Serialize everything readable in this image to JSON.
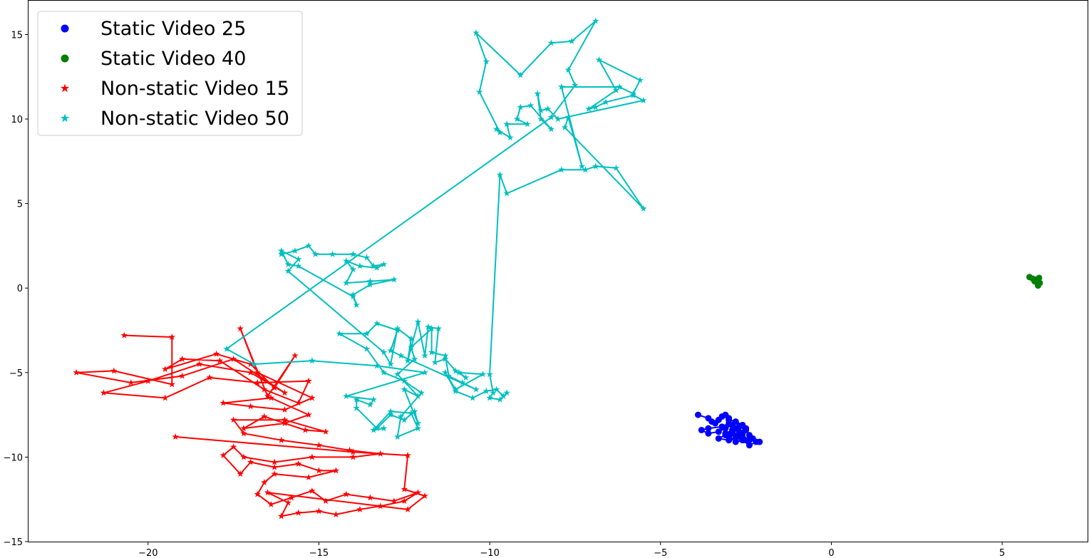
{
  "chart_data": {
    "type": "scatter",
    "title": "",
    "xlabel": "",
    "ylabel": "",
    "xlim": [
      -23.5,
      7.5
    ],
    "ylim": [
      -15,
      17
    ],
    "xticks": [
      -20,
      -15,
      -10,
      -5,
      0,
      5
    ],
    "yticks": [
      -15,
      -10,
      -5,
      0,
      5,
      10,
      15
    ],
    "xtick_labels": [
      "−20",
      "−15",
      "−10",
      "−5",
      "0",
      "5"
    ],
    "ytick_labels": [
      "−15",
      "−10",
      "−5",
      "0",
      "5",
      "10",
      "15"
    ],
    "grid": false,
    "legend_position": "top-left",
    "series": [
      {
        "name": "Static Video 25",
        "color": "#0000ff",
        "marker": "circle",
        "points": [
          [
            -3.9,
            -7.5
          ],
          [
            -3.6,
            -7.7
          ],
          [
            -3.5,
            -7.9
          ],
          [
            -3.4,
            -8.0
          ],
          [
            -3.3,
            -7.8
          ],
          [
            -3.2,
            -7.6
          ],
          [
            -3.1,
            -7.5
          ],
          [
            -3.0,
            -7.7
          ],
          [
            -3.0,
            -8.0
          ],
          [
            -3.2,
            -8.2
          ],
          [
            -3.6,
            -8.3
          ],
          [
            -3.8,
            -8.4
          ],
          [
            -3.6,
            -8.6
          ],
          [
            -3.3,
            -8.5
          ],
          [
            -3.1,
            -8.3
          ],
          [
            -2.9,
            -8.1
          ],
          [
            -2.8,
            -8.3
          ],
          [
            -2.9,
            -8.5
          ],
          [
            -3.1,
            -8.7
          ],
          [
            -3.3,
            -8.9
          ],
          [
            -3.0,
            -9.0
          ],
          [
            -2.8,
            -8.8
          ],
          [
            -2.6,
            -8.6
          ],
          [
            -2.5,
            -8.4
          ],
          [
            -2.7,
            -8.2
          ],
          [
            -2.9,
            -8.4
          ],
          [
            -3.1,
            -8.6
          ],
          [
            -2.7,
            -8.8
          ],
          [
            -2.5,
            -9.0
          ],
          [
            -2.4,
            -8.7
          ],
          [
            -2.3,
            -8.9
          ],
          [
            -2.2,
            -9.1
          ],
          [
            -2.4,
            -9.3
          ],
          [
            -2.6,
            -9.0
          ],
          [
            -2.8,
            -9.1
          ],
          [
            -3.0,
            -8.8
          ],
          [
            -2.7,
            -8.5
          ],
          [
            -2.5,
            -8.3
          ],
          [
            -2.6,
            -8.1
          ],
          [
            -2.8,
            -7.9
          ],
          [
            -3.0,
            -7.8
          ],
          [
            -2.9,
            -8.6
          ],
          [
            -2.6,
            -8.8
          ],
          [
            -2.4,
            -9.0
          ],
          [
            -2.1,
            -9.1
          ]
        ]
      },
      {
        "name": "Static Video 40",
        "color": "#008000",
        "marker": "circle",
        "points": [
          [
            5.8,
            0.65
          ],
          [
            5.9,
            0.55
          ],
          [
            6.0,
            0.45
          ],
          [
            6.05,
            0.2
          ],
          [
            6.1,
            0.3
          ],
          [
            6.08,
            0.6
          ],
          [
            6.0,
            0.5
          ],
          [
            5.95,
            0.4
          ],
          [
            6.05,
            0.15
          ]
        ]
      },
      {
        "name": "Non-static Video 15",
        "color": "#ff0000",
        "marker": "star",
        "points": [
          [
            -20.7,
            -2.8
          ],
          [
            -19.3,
            -2.9
          ],
          [
            -19.3,
            -5.7
          ],
          [
            -21.0,
            -4.9
          ],
          [
            -22.1,
            -5.0
          ],
          [
            -20.5,
            -5.6
          ],
          [
            -19.0,
            -5.2
          ],
          [
            -17.5,
            -4.2
          ],
          [
            -16.0,
            -6.2
          ],
          [
            -17.0,
            -5.0
          ],
          [
            -18.5,
            -4.5
          ],
          [
            -20.0,
            -5.5
          ],
          [
            -21.3,
            -6.2
          ],
          [
            -19.5,
            -6.5
          ],
          [
            -18.2,
            -5.3
          ],
          [
            -16.8,
            -5.6
          ],
          [
            -15.3,
            -5.5
          ],
          [
            -15.6,
            -6.8
          ],
          [
            -16.6,
            -6.0
          ],
          [
            -17.9,
            -4.3
          ],
          [
            -19.0,
            -4.2
          ],
          [
            -19.5,
            -4.8
          ],
          [
            -18.0,
            -3.9
          ],
          [
            -17.0,
            -4.5
          ],
          [
            -16.3,
            -5.9
          ],
          [
            -15.7,
            -4.0
          ],
          [
            -16.5,
            -6.4
          ],
          [
            -17.3,
            -2.4
          ],
          [
            -16.8,
            -5.0
          ],
          [
            -15.2,
            -6.5
          ],
          [
            -16.0,
            -7.2
          ],
          [
            -17.0,
            -7.0
          ],
          [
            -17.8,
            -6.8
          ],
          [
            -16.4,
            -6.5
          ],
          [
            -15.3,
            -7.5
          ],
          [
            -16.0,
            -8.0
          ],
          [
            -17.2,
            -8.3
          ],
          [
            -16.6,
            -7.6
          ],
          [
            -15.4,
            -8.4
          ],
          [
            -14.8,
            -8.5
          ],
          [
            -16.0,
            -7.8
          ],
          [
            -17.5,
            -7.8
          ],
          [
            -17.2,
            -8.6
          ],
          [
            -16.1,
            -9.0
          ],
          [
            -15.0,
            -9.3
          ],
          [
            -14.1,
            -9.6
          ],
          [
            -13.2,
            -9.8
          ],
          [
            -14.0,
            -10.0
          ],
          [
            -15.2,
            -10.0
          ],
          [
            -16.3,
            -10.3
          ],
          [
            -17.2,
            -10.0
          ],
          [
            -17.5,
            -9.4
          ],
          [
            -17.8,
            -9.9
          ],
          [
            -17.3,
            -11.0
          ],
          [
            -17.0,
            -10.3
          ],
          [
            -16.3,
            -10.6
          ],
          [
            -15.6,
            -10.4
          ],
          [
            -15.0,
            -10.8
          ],
          [
            -14.5,
            -10.8
          ],
          [
            -15.3,
            -11.2
          ],
          [
            -16.3,
            -11.0
          ],
          [
            -16.6,
            -11.5
          ],
          [
            -16.8,
            -12.2
          ],
          [
            -16.4,
            -12.8
          ],
          [
            -15.8,
            -12.4
          ],
          [
            -15.2,
            -12.0
          ],
          [
            -14.8,
            -12.6
          ],
          [
            -14.2,
            -12.2
          ],
          [
            -13.5,
            -12.4
          ],
          [
            -12.8,
            -12.6
          ],
          [
            -12.1,
            -12.1
          ],
          [
            -12.5,
            -12.6
          ],
          [
            -13.2,
            -12.9
          ],
          [
            -13.8,
            -13.1
          ],
          [
            -14.5,
            -13.4
          ],
          [
            -15.0,
            -13.2
          ],
          [
            -15.6,
            -13.3
          ],
          [
            -16.1,
            -13.5
          ],
          [
            -15.9,
            -12.7
          ],
          [
            -16.5,
            -12.1
          ],
          [
            -12.4,
            -13.1
          ],
          [
            -11.9,
            -12.3
          ],
          [
            -12.5,
            -11.9
          ],
          [
            -12.4,
            -9.9
          ],
          [
            -14.0,
            -9.7
          ],
          [
            -19.2,
            -8.8
          ]
        ]
      },
      {
        "name": "Non-static Video 50",
        "color": "#00bfbf",
        "marker": "star",
        "points": [
          [
            -16.1,
            2.0
          ],
          [
            -15.7,
            2.2
          ],
          [
            -15.3,
            2.5
          ],
          [
            -15.1,
            2.0
          ],
          [
            -14.6,
            2.0
          ],
          [
            -14.0,
            2.0
          ],
          [
            -13.6,
            1.8
          ],
          [
            -13.4,
            1.3
          ],
          [
            -13.1,
            1.4
          ],
          [
            -13.3,
            1.2
          ],
          [
            -13.8,
            1.3
          ],
          [
            -14.2,
            1.6
          ],
          [
            -14.0,
            1.1
          ],
          [
            -14.2,
            0.3
          ],
          [
            -13.5,
            0.4
          ],
          [
            -12.8,
            0.5
          ],
          [
            -13.5,
            0.2
          ],
          [
            -14.0,
            -0.4
          ],
          [
            -13.9,
            -1.0
          ],
          [
            -14.0,
            -0.5
          ],
          [
            -15.6,
            1.3
          ],
          [
            -15.9,
            1.4
          ],
          [
            -16.1,
            2.2
          ],
          [
            -15.6,
            1.7
          ],
          [
            -15.9,
            1.0
          ],
          [
            -13.1,
            -3.8
          ],
          [
            -12.9,
            -4.5
          ],
          [
            -12.7,
            -2.4
          ],
          [
            -12.3,
            -3.0
          ],
          [
            -12.4,
            -4.3
          ],
          [
            -12.1,
            -2.0
          ],
          [
            -11.9,
            -4.0
          ],
          [
            -11.8,
            -2.3
          ],
          [
            -11.5,
            -2.4
          ],
          [
            -11.6,
            -4.4
          ],
          [
            -11.3,
            -4.2
          ],
          [
            -11.0,
            -4.9
          ],
          [
            -10.7,
            -5.3
          ],
          [
            -10.9,
            -5.0
          ],
          [
            -10.2,
            -5.1
          ],
          [
            -11.0,
            -6.0
          ],
          [
            -11.3,
            -5.0
          ],
          [
            -11.0,
            -6.1
          ],
          [
            -10.5,
            -6.5
          ],
          [
            -10.1,
            -6.1
          ],
          [
            -9.8,
            -6.0
          ],
          [
            -9.6,
            -6.4
          ],
          [
            -9.5,
            -6.2
          ],
          [
            -9.7,
            -6.6
          ],
          [
            -10.0,
            -6.5
          ],
          [
            -9.9,
            -6.2
          ],
          [
            -10.0,
            -5.1
          ],
          [
            -9.7,
            6.7
          ],
          [
            -9.5,
            5.6
          ],
          [
            -7.9,
            7.0
          ],
          [
            -7.2,
            7.0
          ],
          [
            -6.9,
            7.2
          ],
          [
            -6.3,
            7.1
          ],
          [
            -5.5,
            4.7
          ],
          [
            -7.8,
            9.5
          ],
          [
            -7.7,
            10.1
          ],
          [
            -7.3,
            7.2
          ],
          [
            -7.9,
            11.9
          ],
          [
            -6.2,
            11.9
          ],
          [
            -5.8,
            11.5
          ],
          [
            -5.6,
            12.3
          ],
          [
            -6.8,
            13.5
          ],
          [
            -6.3,
            11.7
          ],
          [
            -7.1,
            10.6
          ],
          [
            -6.9,
            10.7
          ],
          [
            -6.6,
            11.0
          ],
          [
            -5.8,
            11.4
          ],
          [
            -5.5,
            11.1
          ],
          [
            -8.0,
            10.0
          ],
          [
            -8.3,
            10.6
          ],
          [
            -8.5,
            10.5
          ],
          [
            -8.6,
            11.5
          ],
          [
            -8.5,
            10.0
          ],
          [
            -8.2,
            9.4
          ],
          [
            -8.8,
            10.8
          ],
          [
            -9.1,
            10.7
          ],
          [
            -9.2,
            10.0
          ],
          [
            -8.9,
            9.7
          ],
          [
            -9.5,
            9.7
          ],
          [
            -9.4,
            8.9
          ],
          [
            -9.8,
            9.4
          ],
          [
            -9.7,
            9.2
          ],
          [
            -10.3,
            11.6
          ],
          [
            -10.1,
            13.4
          ],
          [
            -10.4,
            15.1
          ],
          [
            -9.1,
            12.6
          ],
          [
            -8.2,
            14.5
          ],
          [
            -7.6,
            14.6
          ],
          [
            -6.9,
            15.8
          ],
          [
            -7.7,
            12.9
          ],
          [
            -7.5,
            12.0
          ],
          [
            -8.2,
            10.1
          ],
          [
            -17.7,
            -3.6
          ],
          [
            -16.9,
            -4.5
          ],
          [
            -15.2,
            -4.3
          ],
          [
            -13.3,
            -4.6
          ],
          [
            -11.9,
            -5.0
          ],
          [
            -14.2,
            -6.4
          ],
          [
            -13.4,
            -6.6
          ],
          [
            -13.5,
            -6.9
          ],
          [
            -13.9,
            -6.6
          ],
          [
            -13.9,
            -7.1
          ],
          [
            -13.3,
            -8.3
          ],
          [
            -12.9,
            -7.5
          ],
          [
            -12.5,
            -7.8
          ],
          [
            -12.2,
            -7.3
          ],
          [
            -12.1,
            -8.0
          ],
          [
            -12.5,
            -6.0
          ],
          [
            -12.1,
            -6.4
          ],
          [
            -12.7,
            -5.1
          ],
          [
            -12.2,
            -4.2
          ],
          [
            -12.3,
            -3.5
          ],
          [
            -11.7,
            -2.4
          ],
          [
            -11.7,
            -3.8
          ],
          [
            -11.3,
            -4.0
          ],
          [
            -11.2,
            -5.2
          ],
          [
            -10.8,
            -5.6
          ],
          [
            -10.4,
            -6.0
          ],
          [
            -12.6,
            -4.0
          ],
          [
            -12.9,
            -3.7
          ],
          [
            -12.7,
            -2.5
          ],
          [
            -13.3,
            -2.1
          ],
          [
            -13.6,
            -2.7
          ],
          [
            -14.4,
            -2.7
          ],
          [
            -13.6,
            -3.6
          ],
          [
            -13.1,
            -5.0
          ],
          [
            -12.5,
            -5.5
          ],
          [
            -12.0,
            -6.2
          ],
          [
            -12.6,
            -7.6
          ],
          [
            -12.7,
            -8.8
          ],
          [
            -12.1,
            -8.3
          ],
          [
            -12.3,
            -7.4
          ],
          [
            -12.9,
            -7.3
          ],
          [
            -13.4,
            -8.4
          ],
          [
            -13.1,
            -8.3
          ]
        ]
      }
    ]
  }
}
